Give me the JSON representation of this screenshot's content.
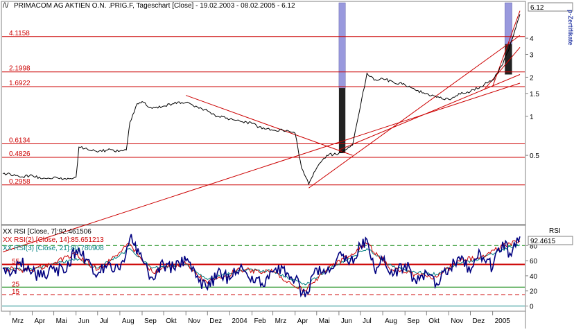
{
  "chart_data": [
    {
      "type": "line",
      "title": "PRIMACOM AG AKTIEN O.N. .PRIG.F, Tageschart [Close] - 19.02.2003 - 08.02.2005 - 6.12",
      "y_scale": "log",
      "ylim": [
        0.15,
        7.5
      ],
      "y_ticks": [
        "4",
        "3",
        "2",
        "1.5",
        "1",
        "0.5"
      ],
      "last_value_label": "6.12",
      "side_label": "p-Zertifikate",
      "levels": [
        {
          "label": "4.1158",
          "value": 4.1158
        },
        {
          "label": "2.1998",
          "value": 2.1998
        },
        {
          "label": "1.6922",
          "value": 1.6922
        },
        {
          "label": "0.6134",
          "value": 0.6134
        },
        {
          "label": "0.4826",
          "value": 0.4826
        },
        {
          "label": "0.2958",
          "value": 0.2958
        }
      ],
      "colors": {
        "price": "#000000",
        "levels": "#cc0000",
        "trend": "#cc0000",
        "volume": "#9999dd",
        "volume_dark": "#222222"
      },
      "trendlines": [
        {
          "from": [
            "2003-02-19",
            0.09
          ],
          "to": [
            "2005-02-08",
            1.8
          ]
        },
        {
          "from": [
            "2003-11-01",
            1.45
          ],
          "to": [
            "2004-06-20",
            0.5
          ]
        },
        {
          "from": [
            "2004-04-20",
            0.28
          ],
          "to": [
            "2005-02-08",
            4.2
          ]
        },
        {
          "from": [
            "2004-06-01",
            0.55
          ],
          "to": [
            "2005-02-08",
            2.1
          ]
        },
        {
          "from": [
            "2004-12-20",
            1.6
          ],
          "to": [
            "2005-02-08",
            3.4
          ]
        },
        {
          "from": [
            "2005-01-01",
            1.7
          ],
          "to": [
            "2005-02-08",
            6.5
          ]
        }
      ],
      "series": [
        {
          "values": [
            [
              "2003-02-19",
              0.36
            ],
            [
              "2003-03-01",
              0.36
            ],
            [
              "2003-03-15",
              0.34
            ],
            [
              "2003-04-01",
              0.35
            ],
            [
              "2003-04-15",
              0.33
            ],
            [
              "2003-05-01",
              0.34
            ],
            [
              "2003-05-15",
              0.33
            ],
            [
              "2003-06-01",
              0.34
            ],
            [
              "2003-06-05",
              0.58
            ],
            [
              "2003-06-15",
              0.57
            ],
            [
              "2003-07-01",
              0.53
            ],
            [
              "2003-07-15",
              0.55
            ],
            [
              "2003-08-01",
              0.54
            ],
            [
              "2003-08-10",
              0.55
            ],
            [
              "2003-08-15",
              0.9
            ],
            [
              "2003-08-25",
              1.25
            ],
            [
              "2003-09-01",
              1.3
            ],
            [
              "2003-09-15",
              1.15
            ],
            [
              "2003-10-01",
              1.2
            ],
            [
              "2003-10-15",
              1.25
            ],
            [
              "2003-11-01",
              1.28
            ],
            [
              "2003-11-15",
              1.2
            ],
            [
              "2003-12-01",
              1.1
            ],
            [
              "2003-12-15",
              1.0
            ],
            [
              "2004-01-01",
              0.95
            ],
            [
              "2004-01-15",
              0.92
            ],
            [
              "2004-02-01",
              0.88
            ],
            [
              "2004-02-15",
              0.8
            ],
            [
              "2004-03-01",
              0.78
            ],
            [
              "2004-03-15",
              0.78
            ],
            [
              "2004-04-01",
              0.74
            ],
            [
              "2004-04-10",
              0.4
            ],
            [
              "2004-04-20",
              0.3
            ],
            [
              "2004-05-01",
              0.4
            ],
            [
              "2004-05-15",
              0.5
            ],
            [
              "2004-06-01",
              0.52
            ],
            [
              "2004-06-20",
              0.6
            ],
            [
              "2004-07-01",
              1.2
            ],
            [
              "2004-07-10",
              2.15
            ],
            [
              "2004-07-20",
              1.9
            ],
            [
              "2004-08-01",
              1.95
            ],
            [
              "2004-08-15",
              1.85
            ],
            [
              "2004-09-01",
              1.75
            ],
            [
              "2004-09-15",
              1.6
            ],
            [
              "2004-10-01",
              1.5
            ],
            [
              "2004-10-15",
              1.4
            ],
            [
              "2004-11-01",
              1.35
            ],
            [
              "2004-11-15",
              1.5
            ],
            [
              "2004-12-01",
              1.55
            ],
            [
              "2004-12-15",
              1.7
            ],
            [
              "2005-01-01",
              1.9
            ],
            [
              "2005-01-15",
              2.5
            ],
            [
              "2005-01-25",
              3.5
            ],
            [
              "2005-02-01",
              4.6
            ],
            [
              "2005-02-08",
              6.12
            ]
          ]
        }
      ]
    },
    {
      "type": "line",
      "title": "XX RSI [Close, 7]:92.461506",
      "legend": [
        {
          "name": "XX RSI(2) [Close, 14]:85.651213",
          "color": "#cc0000"
        },
        {
          "name": "XX RSI(3) [Close, 21]:80.780908",
          "color": "#008080"
        }
      ],
      "panel_label": "RSI",
      "last_value_label": "92.4615",
      "ylim": [
        -5,
        105
      ],
      "y_ticks": [
        "80",
        "60",
        "40",
        "20",
        "0"
      ],
      "left_labels": [
        "55",
        "25",
        "15"
      ],
      "level_lines": [
        {
          "value": 80,
          "style": "dashed",
          "color": "#008000"
        },
        {
          "value": 55,
          "style": "solid",
          "color": "#cc0000"
        },
        {
          "value": 25,
          "style": "solid",
          "color": "#008000"
        },
        {
          "value": 15,
          "style": "dashed",
          "color": "#cc0000"
        },
        {
          "value": 0,
          "style": "solid",
          "color": "#008080"
        }
      ],
      "series": [
        {
          "name": "RSI 7",
          "color": "#000080",
          "values": [
            [
              "2003-02-19",
              50
            ],
            [
              "2003-03-01",
              40
            ],
            [
              "2003-03-15",
              58
            ],
            [
              "2003-04-01",
              45
            ],
            [
              "2003-04-15",
              38
            ],
            [
              "2003-05-01",
              52
            ],
            [
              "2003-05-15",
              44
            ],
            [
              "2003-06-01",
              75
            ],
            [
              "2003-06-15",
              62
            ],
            [
              "2003-07-01",
              42
            ],
            [
              "2003-07-15",
              55
            ],
            [
              "2003-08-01",
              48
            ],
            [
              "2003-08-15",
              90
            ],
            [
              "2003-09-01",
              62
            ],
            [
              "2003-09-15",
              38
            ],
            [
              "2003-10-01",
              55
            ],
            [
              "2003-10-15",
              50
            ],
            [
              "2003-11-01",
              60
            ],
            [
              "2003-11-15",
              38
            ],
            [
              "2003-12-01",
              22
            ],
            [
              "2003-12-15",
              45
            ],
            [
              "2004-01-01",
              35
            ],
            [
              "2004-01-15",
              50
            ],
            [
              "2004-02-01",
              40
            ],
            [
              "2004-02-15",
              30
            ],
            [
              "2004-03-01",
              45
            ],
            [
              "2004-03-15",
              50
            ],
            [
              "2004-04-01",
              35
            ],
            [
              "2004-04-15",
              12
            ],
            [
              "2004-05-01",
              50
            ],
            [
              "2004-05-15",
              45
            ],
            [
              "2004-06-01",
              70
            ],
            [
              "2004-06-15",
              55
            ],
            [
              "2004-07-01",
              80
            ],
            [
              "2004-07-10",
              88
            ],
            [
              "2004-07-20",
              50
            ],
            [
              "2004-08-01",
              60
            ],
            [
              "2004-08-15",
              40
            ],
            [
              "2004-09-01",
              55
            ],
            [
              "2004-09-15",
              35
            ],
            [
              "2004-10-01",
              45
            ],
            [
              "2004-10-15",
              30
            ],
            [
              "2004-11-01",
              50
            ],
            [
              "2004-11-15",
              65
            ],
            [
              "2004-12-01",
              45
            ],
            [
              "2004-12-15",
              70
            ],
            [
              "2005-01-01",
              50
            ],
            [
              "2005-01-15",
              85
            ],
            [
              "2005-01-25",
              70
            ],
            [
              "2005-02-08",
              92
            ]
          ]
        },
        {
          "name": "RSI 14",
          "color": "#cc0000",
          "values": [
            [
              "2003-02-19",
              50
            ],
            [
              "2003-04-01",
              47
            ],
            [
              "2003-06-01",
              68
            ],
            [
              "2003-07-01",
              48
            ],
            [
              "2003-08-15",
              82
            ],
            [
              "2003-09-15",
              45
            ],
            [
              "2003-11-01",
              56
            ],
            [
              "2003-12-01",
              30
            ],
            [
              "2004-01-15",
              48
            ],
            [
              "2004-03-01",
              45
            ],
            [
              "2004-04-15",
              20
            ],
            [
              "2004-05-15",
              48
            ],
            [
              "2004-07-10",
              82
            ],
            [
              "2004-08-15",
              48
            ],
            [
              "2004-09-15",
              42
            ],
            [
              "2004-10-15",
              38
            ],
            [
              "2004-11-15",
              60
            ],
            [
              "2004-12-15",
              65
            ],
            [
              "2005-01-15",
              80
            ],
            [
              "2005-02-08",
              86
            ]
          ]
        },
        {
          "name": "RSI 21",
          "color": "#008080",
          "values": [
            [
              "2003-02-19",
              50
            ],
            [
              "2003-04-01",
              48
            ],
            [
              "2003-06-01",
              63
            ],
            [
              "2003-07-01",
              50
            ],
            [
              "2003-08-15",
              76
            ],
            [
              "2003-09-15",
              50
            ],
            [
              "2003-11-01",
              55
            ],
            [
              "2003-12-01",
              35
            ],
            [
              "2004-01-15",
              48
            ],
            [
              "2004-03-01",
              46
            ],
            [
              "2004-04-15",
              28
            ],
            [
              "2004-05-15",
              47
            ],
            [
              "2004-07-10",
              76
            ],
            [
              "2004-08-15",
              52
            ],
            [
              "2004-09-15",
              45
            ],
            [
              "2004-10-15",
              42
            ],
            [
              "2004-11-15",
              57
            ],
            [
              "2004-12-15",
              62
            ],
            [
              "2005-01-15",
              75
            ],
            [
              "2005-02-08",
              81
            ]
          ]
        }
      ]
    }
  ],
  "x_axis": {
    "start": "2003-02-19",
    "end": "2005-02-08",
    "ticks": [
      {
        "label": "Mrz",
        "date": "2003-03-01"
      },
      {
        "label": "Apr",
        "date": "2003-04-01"
      },
      {
        "label": "Mai",
        "date": "2003-05-01"
      },
      {
        "label": "Jun",
        "date": "2003-06-01"
      },
      {
        "label": "Jul",
        "date": "2003-07-01"
      },
      {
        "label": "Aug",
        "date": "2003-08-01"
      },
      {
        "label": "Sep",
        "date": "2003-09-01"
      },
      {
        "label": "Okt",
        "date": "2003-10-01"
      },
      {
        "label": "Nov",
        "date": "2003-11-01"
      },
      {
        "label": "Dez",
        "date": "2003-12-01"
      },
      {
        "label": "2004",
        "date": "2004-01-01"
      },
      {
        "label": "Feb",
        "date": "2004-02-01"
      },
      {
        "label": "Mrz",
        "date": "2004-03-01"
      },
      {
        "label": "Apr",
        "date": "2004-04-01"
      },
      {
        "label": "Mai",
        "date": "2004-05-01"
      },
      {
        "label": "Jun",
        "date": "2004-06-01"
      },
      {
        "label": "Jul",
        "date": "2004-07-01"
      },
      {
        "label": "Aug",
        "date": "2004-08-01"
      },
      {
        "label": "Sep",
        "date": "2004-09-01"
      },
      {
        "label": "Okt",
        "date": "2004-10-01"
      },
      {
        "label": "Nov",
        "date": "2004-11-01"
      },
      {
        "label": "Dez",
        "date": "2004-12-01"
      },
      {
        "label": "2005",
        "date": "2005-01-01"
      }
    ]
  },
  "highlight_bars": [
    {
      "date": "2004-06-01",
      "date_end": "2004-06-10",
      "top": 7.5,
      "mid": 1.65,
      "bottom": 0.52
    },
    {
      "date": "2005-01-18",
      "date_end": "2005-01-28",
      "top": 7.5,
      "mid": 3.6,
      "bottom": 2.1
    }
  ]
}
